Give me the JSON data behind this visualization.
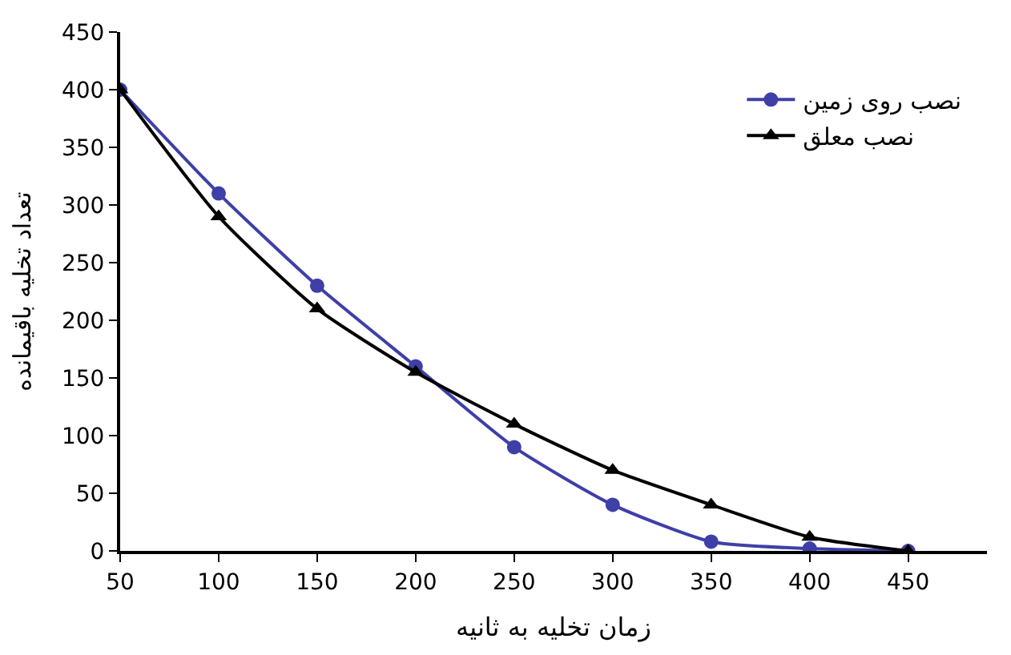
{
  "chart_data": {
    "type": "line",
    "xlabel": "زمان تخلیه به ثانیه",
    "ylabel": "تعداد تخلیه باقیمانده",
    "x": [
      50,
      100,
      150,
      200,
      250,
      300,
      350,
      400,
      450
    ],
    "series": [
      {
        "name": "نصب روی زمین",
        "color": "#3f3fa8",
        "marker": "circle",
        "values": [
          400,
          310,
          230,
          160,
          90,
          40,
          8,
          2,
          0
        ]
      },
      {
        "name": "نصب معلق",
        "color": "#000000",
        "marker": "triangle",
        "values": [
          400,
          290,
          210,
          155,
          110,
          70,
          40,
          12,
          0
        ]
      }
    ],
    "xlim": [
      50,
      490
    ],
    "xticks": [
      50,
      100,
      150,
      200,
      250,
      300,
      350,
      400,
      450
    ],
    "ylim": [
      0,
      450
    ],
    "yticks": [
      0,
      50,
      100,
      150,
      200,
      250,
      300,
      350,
      400,
      450
    ],
    "legend": "top right",
    "line_style": "solid"
  }
}
